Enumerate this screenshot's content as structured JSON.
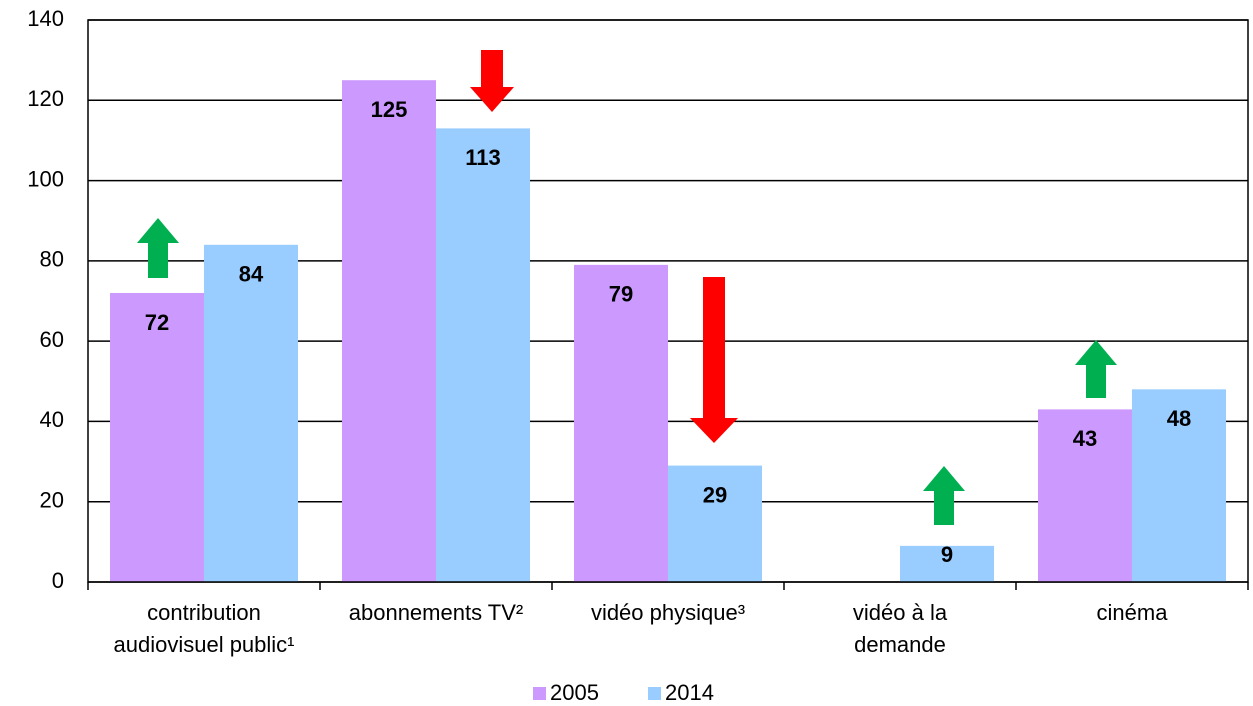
{
  "chart_data": {
    "type": "bar",
    "categories": [
      "contribution audiovisuel public¹",
      "abonnements TV²",
      "vidéo physique³",
      "vidéo à la demande",
      "cinéma"
    ],
    "series": [
      {
        "name": "2005",
        "color": "#cc99ff",
        "values": [
          72,
          125,
          79,
          null,
          43
        ]
      },
      {
        "name": "2014",
        "color": "#99ccff",
        "values": [
          84,
          113,
          29,
          9,
          48
        ]
      }
    ],
    "ylim": [
      0,
      140
    ],
    "yticks": [
      0,
      20,
      40,
      60,
      80,
      100,
      120,
      140
    ],
    "grid": true,
    "legend": "bottom"
  }
}
